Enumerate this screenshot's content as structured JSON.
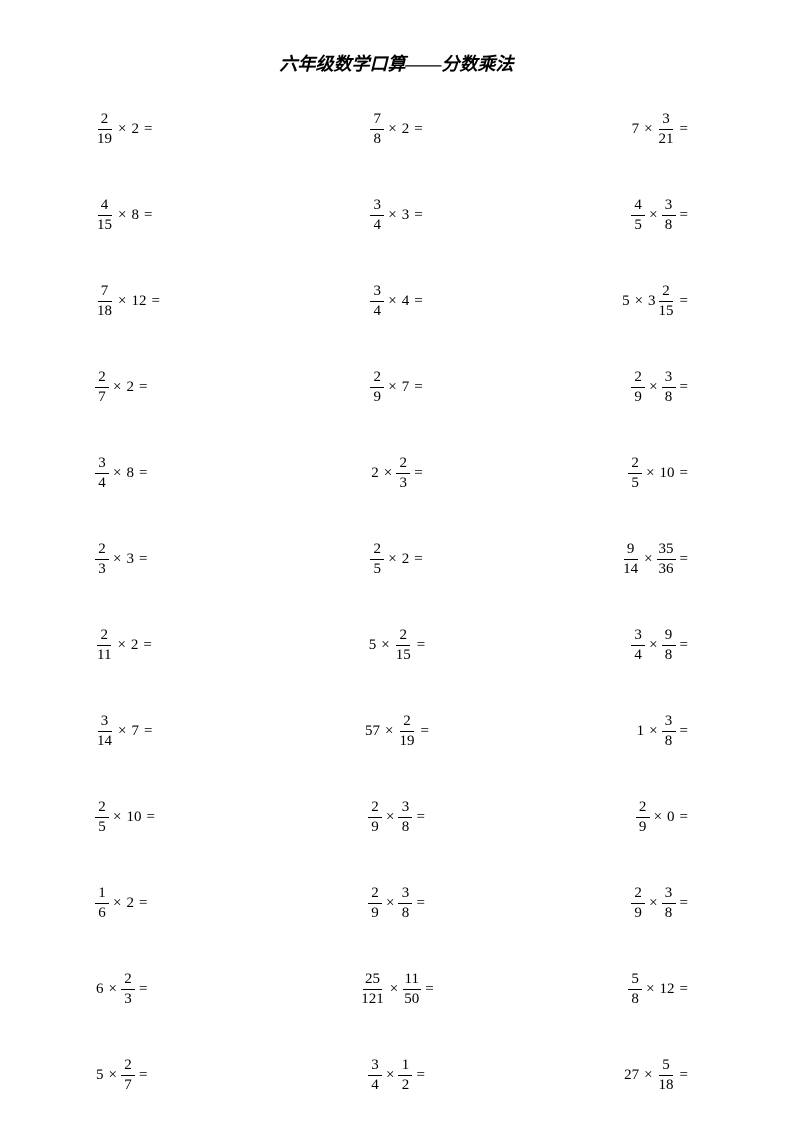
{
  "page": {
    "title": "六年级数学口算——分数乘法",
    "background_color": "#ffffff",
    "text_color": "#000000",
    "title_fontsize": 18,
    "problem_fontsize": 15,
    "columns": 3,
    "rows": 12
  },
  "problems": [
    [
      {
        "terms": [
          {
            "type": "frac",
            "num": "2",
            "den": "19"
          },
          {
            "type": "op",
            "val": "×"
          },
          {
            "type": "int",
            "val": "2"
          }
        ]
      },
      {
        "terms": [
          {
            "type": "frac",
            "num": "7",
            "den": "8"
          },
          {
            "type": "op",
            "val": "×"
          },
          {
            "type": "int",
            "val": "2"
          }
        ]
      },
      {
        "terms": [
          {
            "type": "int",
            "val": "7"
          },
          {
            "type": "op",
            "val": "×"
          },
          {
            "type": "frac",
            "num": "3",
            "den": "21"
          }
        ]
      }
    ],
    [
      {
        "terms": [
          {
            "type": "frac",
            "num": "4",
            "den": "15"
          },
          {
            "type": "op",
            "val": "×"
          },
          {
            "type": "int",
            "val": "8"
          }
        ]
      },
      {
        "terms": [
          {
            "type": "frac",
            "num": "3",
            "den": "4"
          },
          {
            "type": "op",
            "val": "×"
          },
          {
            "type": "int",
            "val": "3"
          }
        ]
      },
      {
        "terms": [
          {
            "type": "frac",
            "num": "4",
            "den": "5"
          },
          {
            "type": "op",
            "val": "×"
          },
          {
            "type": "frac",
            "num": "3",
            "den": "8"
          }
        ]
      }
    ],
    [
      {
        "terms": [
          {
            "type": "frac",
            "num": "7",
            "den": "18"
          },
          {
            "type": "op",
            "val": "×"
          },
          {
            "type": "int",
            "val": "12"
          }
        ]
      },
      {
        "terms": [
          {
            "type": "frac",
            "num": "3",
            "den": "4"
          },
          {
            "type": "op",
            "val": "×"
          },
          {
            "type": "int",
            "val": "4"
          }
        ]
      },
      {
        "terms": [
          {
            "type": "int",
            "val": "5"
          },
          {
            "type": "op",
            "val": "×"
          },
          {
            "type": "mixed",
            "whole": "3",
            "num": "2",
            "den": "15"
          }
        ]
      }
    ],
    [
      {
        "terms": [
          {
            "type": "frac",
            "num": "2",
            "den": "7"
          },
          {
            "type": "op",
            "val": "×"
          },
          {
            "type": "int",
            "val": "2"
          }
        ]
      },
      {
        "terms": [
          {
            "type": "frac",
            "num": "2",
            "den": "9"
          },
          {
            "type": "op",
            "val": "×"
          },
          {
            "type": "int",
            "val": "7"
          }
        ]
      },
      {
        "terms": [
          {
            "type": "frac",
            "num": "2",
            "den": "9"
          },
          {
            "type": "op",
            "val": "×"
          },
          {
            "type": "frac",
            "num": "3",
            "den": "8"
          }
        ]
      }
    ],
    [
      {
        "terms": [
          {
            "type": "frac",
            "num": "3",
            "den": "4"
          },
          {
            "type": "op",
            "val": "×"
          },
          {
            "type": "int",
            "val": "8"
          }
        ]
      },
      {
        "terms": [
          {
            "type": "int",
            "val": "2"
          },
          {
            "type": "op",
            "val": "×"
          },
          {
            "type": "frac",
            "num": "2",
            "den": "3"
          }
        ]
      },
      {
        "terms": [
          {
            "type": "frac",
            "num": "2",
            "den": "5"
          },
          {
            "type": "op",
            "val": "×"
          },
          {
            "type": "int",
            "val": "10"
          }
        ]
      }
    ],
    [
      {
        "terms": [
          {
            "type": "frac",
            "num": "2",
            "den": "3"
          },
          {
            "type": "op",
            "val": "×"
          },
          {
            "type": "int",
            "val": "3"
          }
        ]
      },
      {
        "terms": [
          {
            "type": "frac",
            "num": "2",
            "den": "5"
          },
          {
            "type": "op",
            "val": "×"
          },
          {
            "type": "int",
            "val": "2"
          }
        ]
      },
      {
        "terms": [
          {
            "type": "frac",
            "num": "9",
            "den": "14"
          },
          {
            "type": "op",
            "val": "×"
          },
          {
            "type": "frac",
            "num": "35",
            "den": "36"
          }
        ]
      }
    ],
    [
      {
        "terms": [
          {
            "type": "frac",
            "num": "2",
            "den": "11"
          },
          {
            "type": "op",
            "val": "×"
          },
          {
            "type": "int",
            "val": "2"
          }
        ]
      },
      {
        "terms": [
          {
            "type": "int",
            "val": "5"
          },
          {
            "type": "op",
            "val": "×"
          },
          {
            "type": "frac",
            "num": "2",
            "den": "15"
          }
        ]
      },
      {
        "terms": [
          {
            "type": "frac",
            "num": "3",
            "den": "4"
          },
          {
            "type": "op",
            "val": "×"
          },
          {
            "type": "frac",
            "num": "9",
            "den": "8"
          }
        ]
      }
    ],
    [
      {
        "terms": [
          {
            "type": "frac",
            "num": "3",
            "den": "14"
          },
          {
            "type": "op",
            "val": "×"
          },
          {
            "type": "int",
            "val": "7"
          }
        ]
      },
      {
        "terms": [
          {
            "type": "int",
            "val": "57"
          },
          {
            "type": "op",
            "val": "×"
          },
          {
            "type": "frac",
            "num": "2",
            "den": "19"
          }
        ]
      },
      {
        "terms": [
          {
            "type": "int",
            "val": "1"
          },
          {
            "type": "op",
            "val": "×"
          },
          {
            "type": "frac",
            "num": "3",
            "den": "8"
          }
        ]
      }
    ],
    [
      {
        "terms": [
          {
            "type": "frac",
            "num": "2",
            "den": "5"
          },
          {
            "type": "op",
            "val": "×"
          },
          {
            "type": "int",
            "val": "10"
          }
        ]
      },
      {
        "terms": [
          {
            "type": "frac",
            "num": "2",
            "den": "9"
          },
          {
            "type": "op",
            "val": "×"
          },
          {
            "type": "frac",
            "num": "3",
            "den": "8"
          }
        ]
      },
      {
        "terms": [
          {
            "type": "frac",
            "num": "2",
            "den": "9"
          },
          {
            "type": "op",
            "val": "×"
          },
          {
            "type": "int",
            "val": "0"
          }
        ]
      }
    ],
    [
      {
        "terms": [
          {
            "type": "frac",
            "num": "1",
            "den": "6"
          },
          {
            "type": "op",
            "val": "×"
          },
          {
            "type": "int",
            "val": "2"
          }
        ]
      },
      {
        "terms": [
          {
            "type": "frac",
            "num": "2",
            "den": "9"
          },
          {
            "type": "op",
            "val": "×"
          },
          {
            "type": "frac",
            "num": "3",
            "den": "8"
          }
        ]
      },
      {
        "terms": [
          {
            "type": "frac",
            "num": "2",
            "den": "9"
          },
          {
            "type": "op",
            "val": "×"
          },
          {
            "type": "frac",
            "num": "3",
            "den": "8"
          }
        ]
      }
    ],
    [
      {
        "terms": [
          {
            "type": "int",
            "val": "6"
          },
          {
            "type": "op",
            "val": "×"
          },
          {
            "type": "frac",
            "num": "2",
            "den": "3"
          }
        ]
      },
      {
        "terms": [
          {
            "type": "frac",
            "num": "25",
            "den": "121"
          },
          {
            "type": "op",
            "val": "×"
          },
          {
            "type": "frac",
            "num": "11",
            "den": "50"
          }
        ]
      },
      {
        "terms": [
          {
            "type": "frac",
            "num": "5",
            "den": "8"
          },
          {
            "type": "op",
            "val": "×"
          },
          {
            "type": "int",
            "val": "12"
          }
        ]
      }
    ],
    [
      {
        "terms": [
          {
            "type": "int",
            "val": "5"
          },
          {
            "type": "op",
            "val": "×"
          },
          {
            "type": "frac",
            "num": "2",
            "den": "7"
          }
        ]
      },
      {
        "terms": [
          {
            "type": "frac",
            "num": "3",
            "den": "4"
          },
          {
            "type": "op",
            "val": "×"
          },
          {
            "type": "frac",
            "num": "1",
            "den": "2"
          }
        ]
      },
      {
        "terms": [
          {
            "type": "int",
            "val": "27"
          },
          {
            "type": "op",
            "val": "×"
          },
          {
            "type": "frac",
            "num": "5",
            "den": "18"
          }
        ]
      }
    ]
  ],
  "equals": "="
}
